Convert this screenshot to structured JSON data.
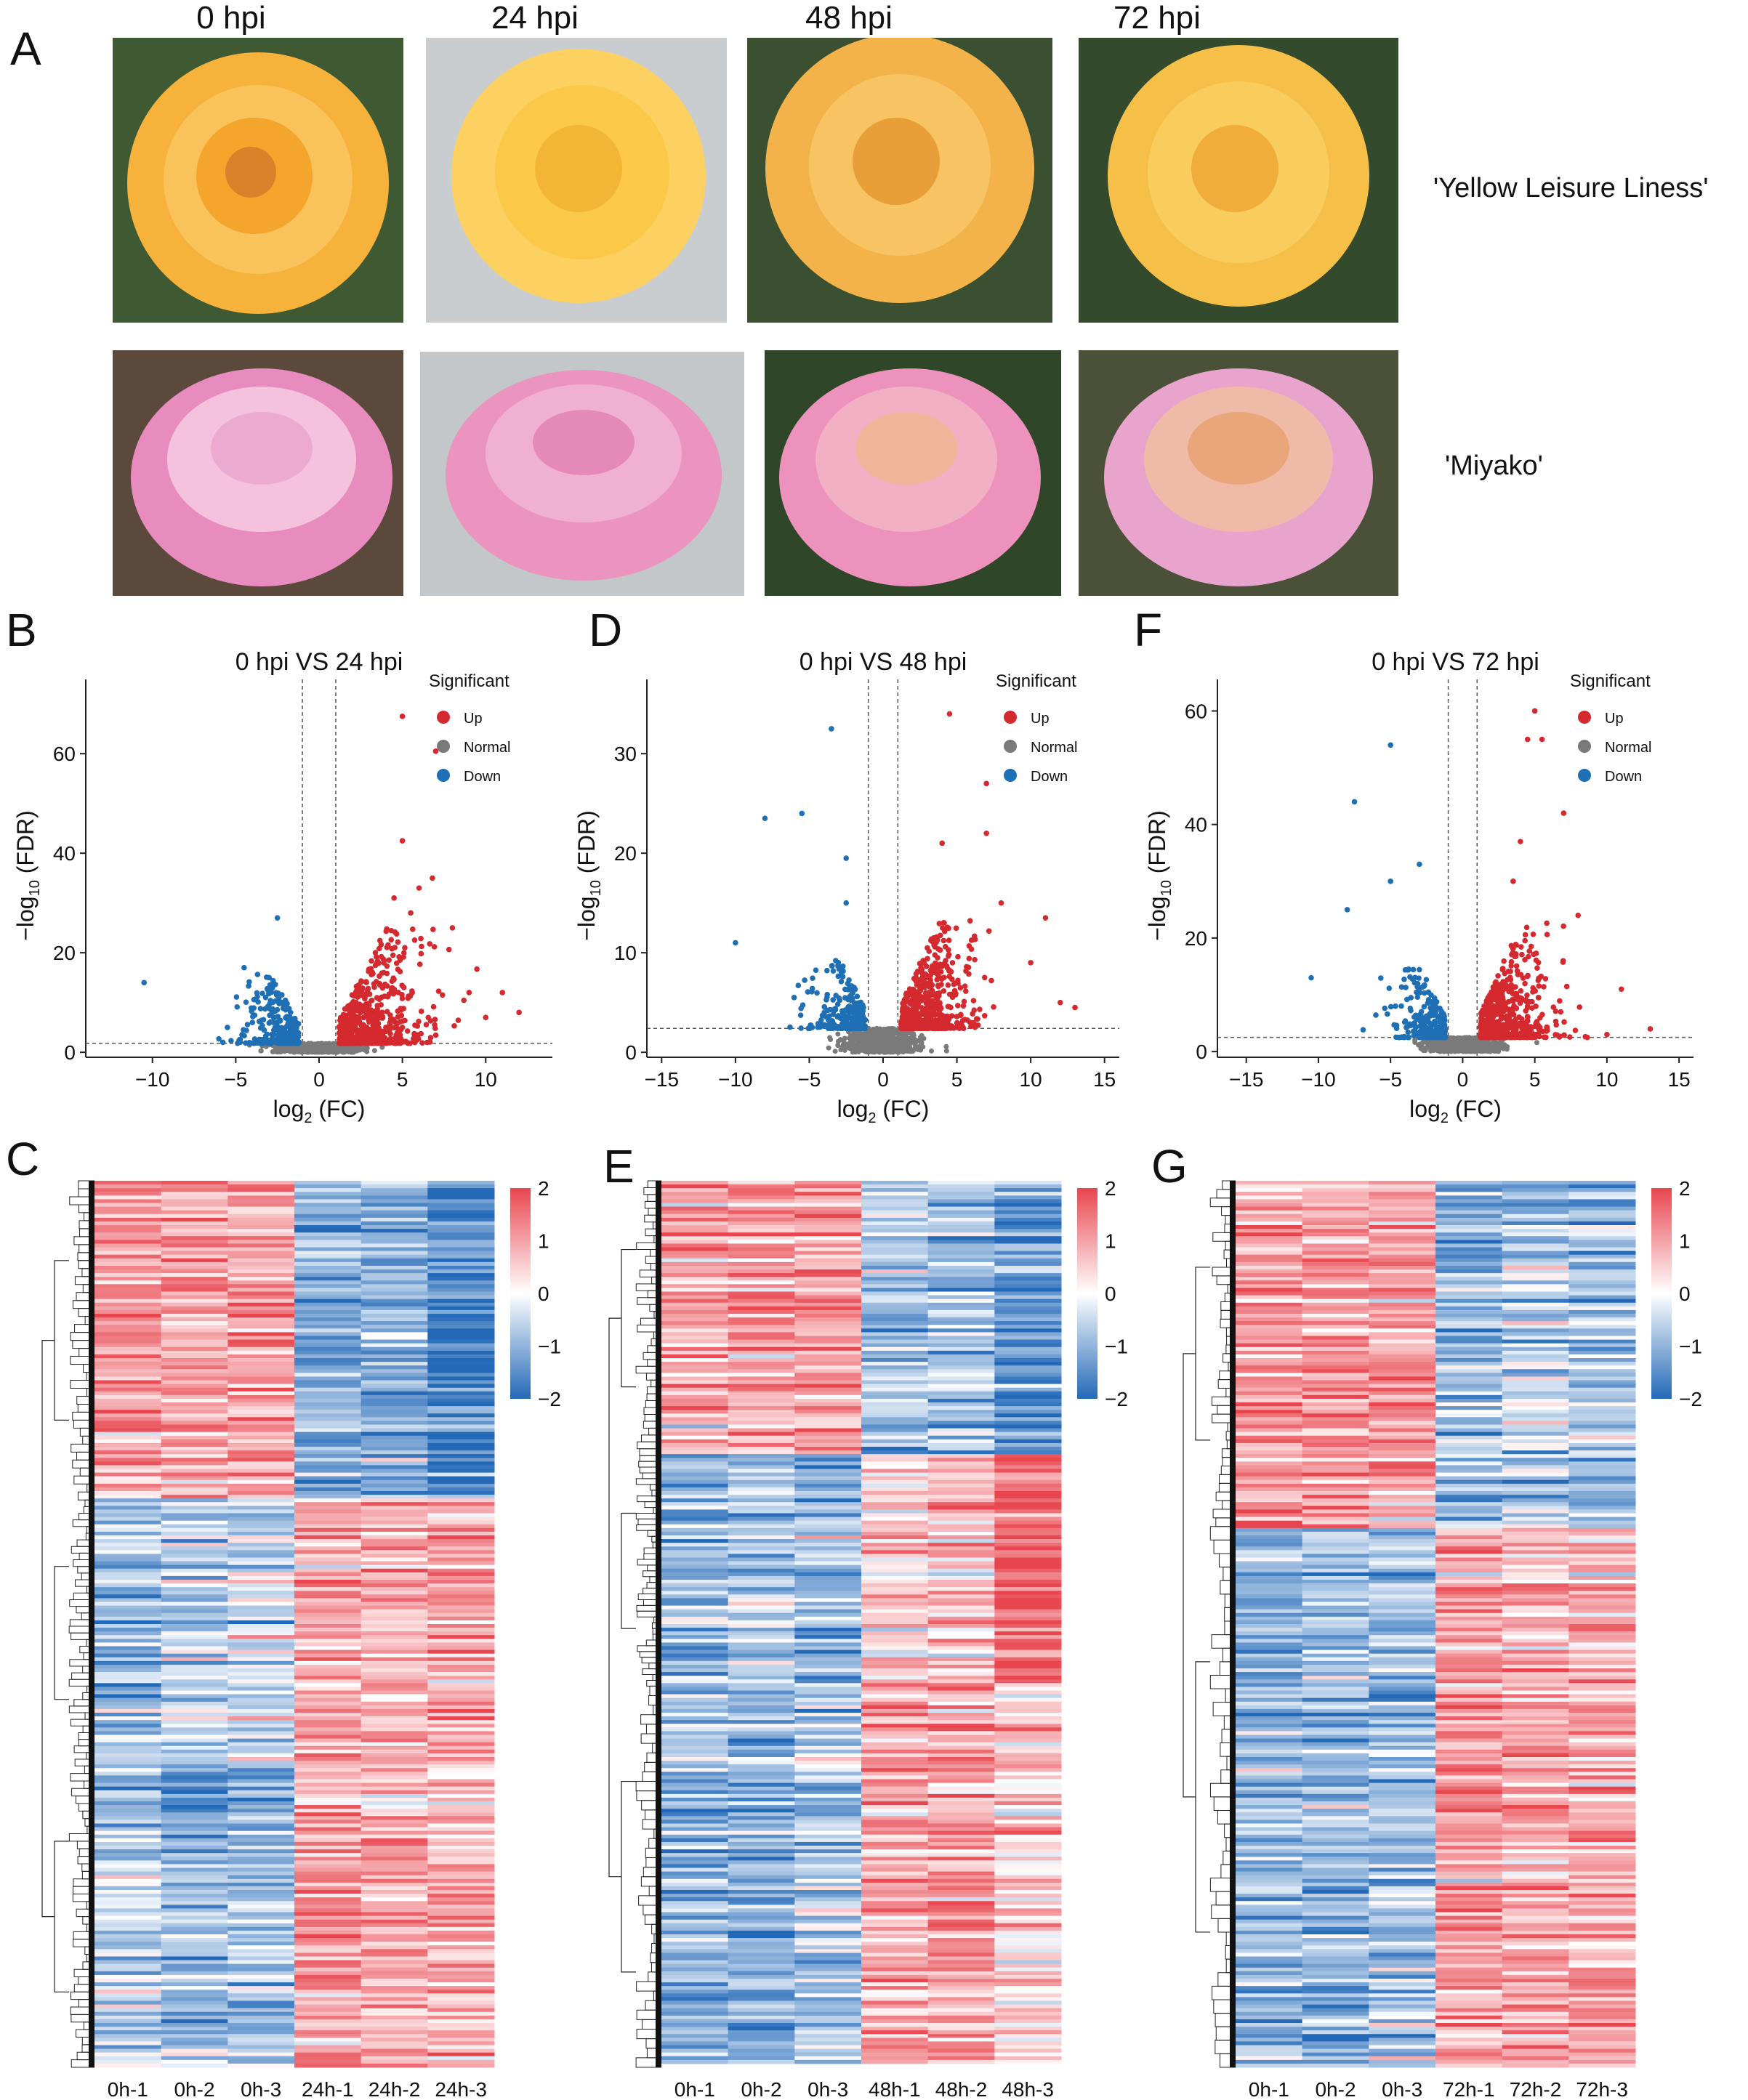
{
  "panel_letters": [
    "A",
    "B",
    "C",
    "D",
    "E",
    "F",
    "G"
  ],
  "photos": {
    "timepoints": [
      "0 hpi",
      "24 hpi",
      "48 hpi",
      "72 hpi"
    ],
    "cultivars": [
      "'Yellow Leisure Liness'",
      "'Miyako'"
    ],
    "colors": {
      "yellow_petal": "#f6b23a",
      "yellow_light": "#fcd061",
      "pink_petal": "#e88cc0",
      "pink_light": "#f4c2dc",
      "leaf": "#3f5a33"
    }
  },
  "chart_data": [
    {
      "type": "scatter",
      "id": "B",
      "title": "0 hpi VS 24 hpi",
      "xlabel_main": "log",
      "xlabel_sub": "2",
      "xlabel_rest": " (FC)",
      "ylabel_main": "−log",
      "ylabel_sub": "10",
      "ylabel_rest": " (FDR)",
      "xlim": [
        -14,
        14
      ],
      "ylim": [
        -1,
        72
      ],
      "xticks": [
        -10,
        -5,
        0,
        5,
        10
      ],
      "yticks": [
        0,
        20,
        40,
        60
      ],
      "xtick_labels": [
        "−10",
        "−5",
        "0",
        "5",
        "10"
      ],
      "ytick_labels": [
        "0",
        "20",
        "40",
        "60"
      ],
      "vlines": [
        -1,
        1
      ],
      "hline": 1.8,
      "legend_title": "Significant",
      "legend": [
        "Up",
        "Normal",
        "Down"
      ],
      "colors": {
        "Up": "#d42a2f",
        "Normal": "#7a7a7a",
        "Down": "#1f6fb5"
      },
      "up_points": [
        [
          5,
          67.5
        ],
        [
          7,
          60.5
        ],
        [
          5,
          42.5
        ],
        [
          6.8,
          35
        ],
        [
          6,
          33
        ],
        [
          4.5,
          31
        ],
        [
          5.5,
          28
        ],
        [
          8,
          25
        ],
        [
          9,
          12
        ],
        [
          11,
          12
        ],
        [
          12,
          8
        ],
        [
          10,
          7
        ]
      ],
      "down_points": [
        [
          -10.5,
          14
        ],
        [
          -2.5,
          27
        ],
        [
          -4.5,
          17
        ],
        [
          -3,
          15
        ],
        [
          -5.5,
          5
        ],
        [
          -4,
          6
        ]
      ]
    },
    {
      "type": "scatter",
      "id": "D",
      "title": "0 hpi VS 48 hpi",
      "xlabel_main": "log",
      "xlabel_sub": "2",
      "xlabel_rest": " (FC)",
      "ylabel_main": "−log",
      "ylabel_sub": "10",
      "ylabel_rest": " (FDR)",
      "xlim": [
        -16,
        16
      ],
      "ylim": [
        -0.5,
        36
      ],
      "xticks": [
        -15,
        -10,
        -5,
        0,
        5,
        10,
        15
      ],
      "yticks": [
        0,
        10,
        20,
        30
      ],
      "xtick_labels": [
        "−15",
        "−10",
        "−5",
        "0",
        "5",
        "10",
        "15"
      ],
      "ytick_labels": [
        "0",
        "10",
        "20",
        "30"
      ],
      "vlines": [
        -1,
        1
      ],
      "hline": 2.4,
      "legend_title": "Significant",
      "legend": [
        "Up",
        "Normal",
        "Down"
      ],
      "colors": {
        "Up": "#d42a2f",
        "Normal": "#7a7a7a",
        "Down": "#1f6fb5"
      },
      "up_points": [
        [
          4.5,
          34
        ],
        [
          7,
          27
        ],
        [
          7,
          22
        ],
        [
          4,
          21
        ],
        [
          11,
          13.5
        ],
        [
          8,
          15
        ],
        [
          12,
          5
        ],
        [
          13,
          4.5
        ],
        [
          10,
          9
        ]
      ],
      "down_points": [
        [
          -3.5,
          32.5
        ],
        [
          -8,
          23.5
        ],
        [
          -5.5,
          24
        ],
        [
          -2.5,
          19.5
        ],
        [
          -10,
          11
        ],
        [
          -2.5,
          15
        ]
      ]
    },
    {
      "type": "scatter",
      "id": "F",
      "title": "0 hpi VS 72 hpi",
      "xlabel_main": "log",
      "xlabel_sub": "2",
      "xlabel_rest": " (FC)",
      "ylabel_main": "−log",
      "ylabel_sub": "10",
      "ylabel_rest": " (FDR)",
      "xlim": [
        -17,
        16
      ],
      "ylim": [
        -1,
        63
      ],
      "xticks": [
        -15,
        -10,
        -5,
        0,
        5,
        10,
        15
      ],
      "yticks": [
        0,
        20,
        40,
        60
      ],
      "xtick_labels": [
        "−15",
        "−10",
        "−5",
        "0",
        "5",
        "10",
        "15"
      ],
      "ytick_labels": [
        "0",
        "20",
        "40",
        "60"
      ],
      "vlines": [
        -1,
        1
      ],
      "hline": 2.5,
      "legend_title": "Significant",
      "legend": [
        "Up",
        "Normal",
        "Down"
      ],
      "colors": {
        "Up": "#d42a2f",
        "Normal": "#7a7a7a",
        "Down": "#1f6fb5"
      },
      "up_points": [
        [
          5,
          60
        ],
        [
          5.5,
          55
        ],
        [
          4.5,
          55
        ],
        [
          7,
          42
        ],
        [
          4,
          37
        ],
        [
          3.5,
          30
        ],
        [
          8,
          24
        ],
        [
          11,
          11
        ],
        [
          13,
          4
        ],
        [
          10,
          3
        ]
      ],
      "down_points": [
        [
          -5,
          54
        ],
        [
          -7.5,
          44
        ],
        [
          -3,
          33
        ],
        [
          -5,
          30
        ],
        [
          -10.5,
          13
        ],
        [
          -8,
          25
        ]
      ]
    },
    {
      "type": "heatmap",
      "id": "C",
      "columns": [
        "0h-1",
        "0h-2",
        "0h-3",
        "24h-1",
        "24h-2",
        "24h-3"
      ],
      "scale_ticks": [
        2,
        1,
        0,
        -1,
        -2
      ],
      "scale_labels": [
        "2",
        "1",
        "0",
        "−1",
        "−2"
      ],
      "colors": {
        "high": "#e8464f",
        "mid": "#ffffff",
        "low": "#2369b8"
      },
      "blocks": [
        {
          "rows": 0.36,
          "pattern": [
            1,
            1,
            1,
            -1,
            -1,
            -1.6
          ]
        },
        {
          "rows": 0.3,
          "pattern": [
            -1,
            -0.6,
            -0.4,
            1,
            0.8,
            0.9
          ]
        },
        {
          "rows": 0.34,
          "pattern": [
            -0.6,
            -1,
            -0.8,
            1.1,
            0.9,
            0.9
          ]
        }
      ]
    },
    {
      "type": "heatmap",
      "id": "E",
      "columns": [
        "0h-1",
        "0h-2",
        "0h-3",
        "48h-1",
        "48h-2",
        "48h-3"
      ],
      "scale_ticks": [
        2,
        1,
        0,
        -1,
        -2
      ],
      "scale_labels": [
        "2",
        "1",
        "0",
        "−1",
        "−2"
      ],
      "colors": {
        "high": "#e8464f",
        "mid": "#ffffff",
        "low": "#2369b8"
      },
      "blocks": [
        {
          "rows": 0.31,
          "pattern": [
            0.9,
            1,
            1,
            -0.8,
            -0.9,
            -1.4
          ]
        },
        {
          "rows": 0.26,
          "pattern": [
            -1,
            -0.8,
            -1,
            0.5,
            0.6,
            1.6
          ]
        },
        {
          "rows": 0.43,
          "pattern": [
            -0.9,
            -1,
            -0.7,
            1,
            1,
            0.5
          ]
        }
      ]
    },
    {
      "type": "heatmap",
      "id": "G",
      "columns": [
        "0h-1",
        "0h-2",
        "0h-3",
        "72h-1",
        "72h-2",
        "72h-3"
      ],
      "scale_ticks": [
        2,
        1,
        0,
        -1,
        -2
      ],
      "scale_labels": [
        "2",
        "1",
        "0",
        "−1",
        "−2"
      ],
      "colors": {
        "high": "#e8464f",
        "mid": "#ffffff",
        "low": "#2369b8"
      },
      "blocks": [
        {
          "rows": 0.39,
          "pattern": [
            1,
            1,
            1,
            -1,
            -0.7,
            -1
          ]
        },
        {
          "rows": 0.61,
          "pattern": [
            -1,
            -0.9,
            -0.8,
            1,
            0.9,
            0.9
          ]
        }
      ]
    }
  ]
}
